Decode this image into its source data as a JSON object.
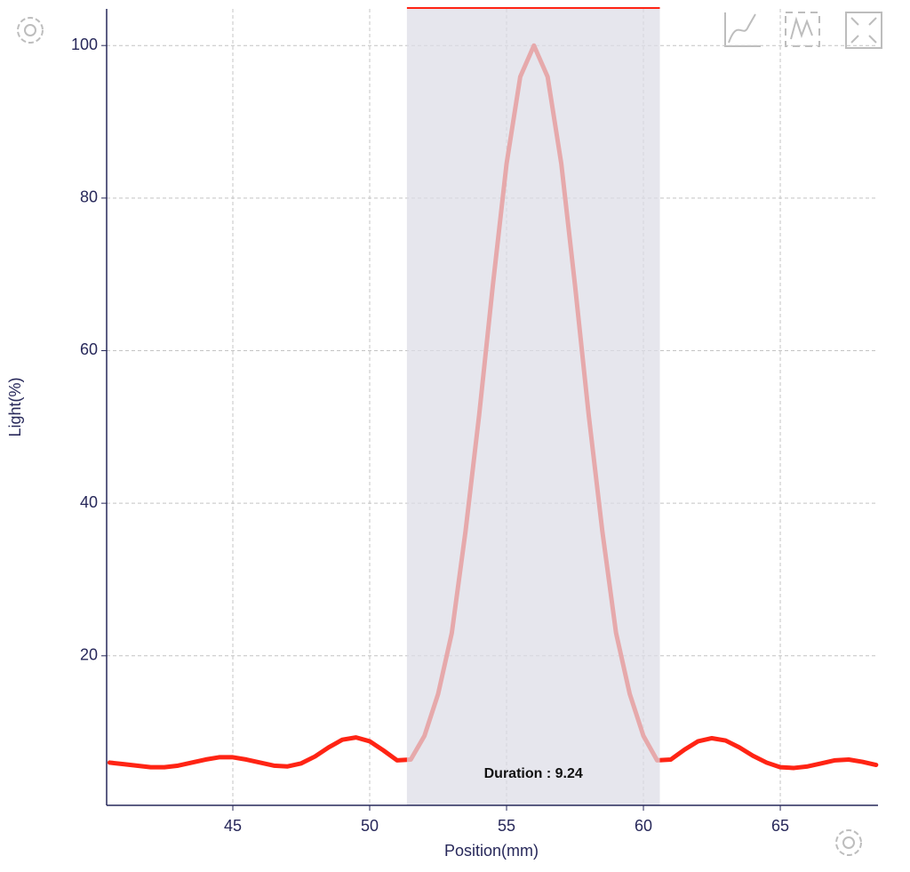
{
  "chart_data": {
    "type": "line",
    "x_label": "Position(mm)",
    "y_label": "Light(%)",
    "x": [
      40.5,
      41,
      41.5,
      42,
      42.5,
      43,
      43.5,
      44,
      44.5,
      45,
      45.5,
      46,
      46.5,
      47,
      47.5,
      48,
      48.5,
      49,
      49.5,
      50,
      50.5,
      51,
      51.5,
      52,
      52.5,
      53,
      53.5,
      54,
      54.5,
      55,
      55.5,
      56,
      56.5,
      57,
      57.5,
      58,
      58.5,
      59,
      59.5,
      60,
      60.5,
      61,
      61.5,
      62,
      62.5,
      63,
      63.5,
      64,
      64.5,
      65,
      65.5,
      66,
      66.5,
      67,
      67.5,
      68,
      68.5
    ],
    "series": [
      {
        "color": "#ff2414",
        "values": [
          6.0,
          5.8,
          5.6,
          5.4,
          5.4,
          5.6,
          6.0,
          6.4,
          6.7,
          6.7,
          6.4,
          6.0,
          5.6,
          5.5,
          5.9,
          6.8,
          8.0,
          9.0,
          9.3,
          8.8,
          7.6,
          6.3,
          6.4,
          9.5,
          15,
          23,
          36.3,
          51.6,
          68.6,
          84.5,
          95.9,
          100,
          95.9,
          84.5,
          68.6,
          51.6,
          36.3,
          23,
          15,
          9.5,
          6.3,
          6.4,
          7.7,
          8.8,
          9.2,
          8.9,
          8.0,
          6.9,
          6.0,
          5.4,
          5.3,
          5.5,
          5.9,
          6.3,
          6.4,
          6.1,
          5.7
        ]
      }
    ],
    "highlight": {
      "start": 51.36,
      "end": 60.6,
      "color": "#dcdce6",
      "label": "Duration : 9.24"
    },
    "xlim": [
      40.39,
      68.57
    ],
    "ylim": [
      0.4,
      104.8
    ],
    "xticks": [
      45,
      50,
      55,
      60,
      65
    ],
    "yticks": [
      20,
      40,
      60,
      80,
      100
    ],
    "grid": true
  }
}
